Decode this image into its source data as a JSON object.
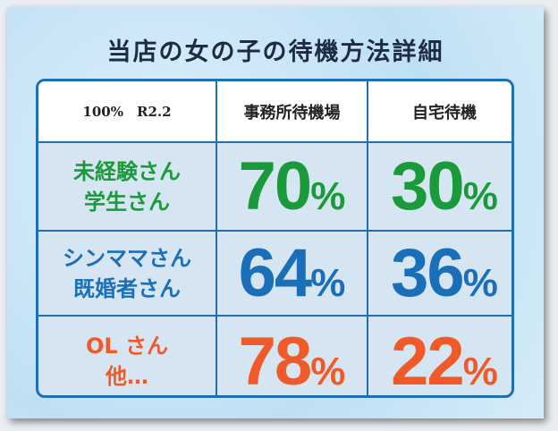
{
  "title": "当店の女の子の待機方法詳細",
  "table": {
    "header": [
      "100%　R2.2",
      "事務所待機場",
      "自宅待機"
    ],
    "rows": [
      {
        "label": [
          "未経験さん",
          "学生さん"
        ],
        "cells": [
          {
            "value": "70",
            "unit": "%"
          },
          {
            "value": "30",
            "unit": "%"
          }
        ]
      },
      {
        "label": [
          "シンママさん",
          "既婚者さん"
        ],
        "cells": [
          {
            "value": "64",
            "unit": "%"
          },
          {
            "value": "36",
            "unit": "%"
          }
        ]
      },
      {
        "label": [
          "OL さん",
          "他…"
        ],
        "cells": [
          {
            "value": "78",
            "unit": "%"
          },
          {
            "value": "22",
            "unit": "%"
          }
        ]
      }
    ]
  }
}
